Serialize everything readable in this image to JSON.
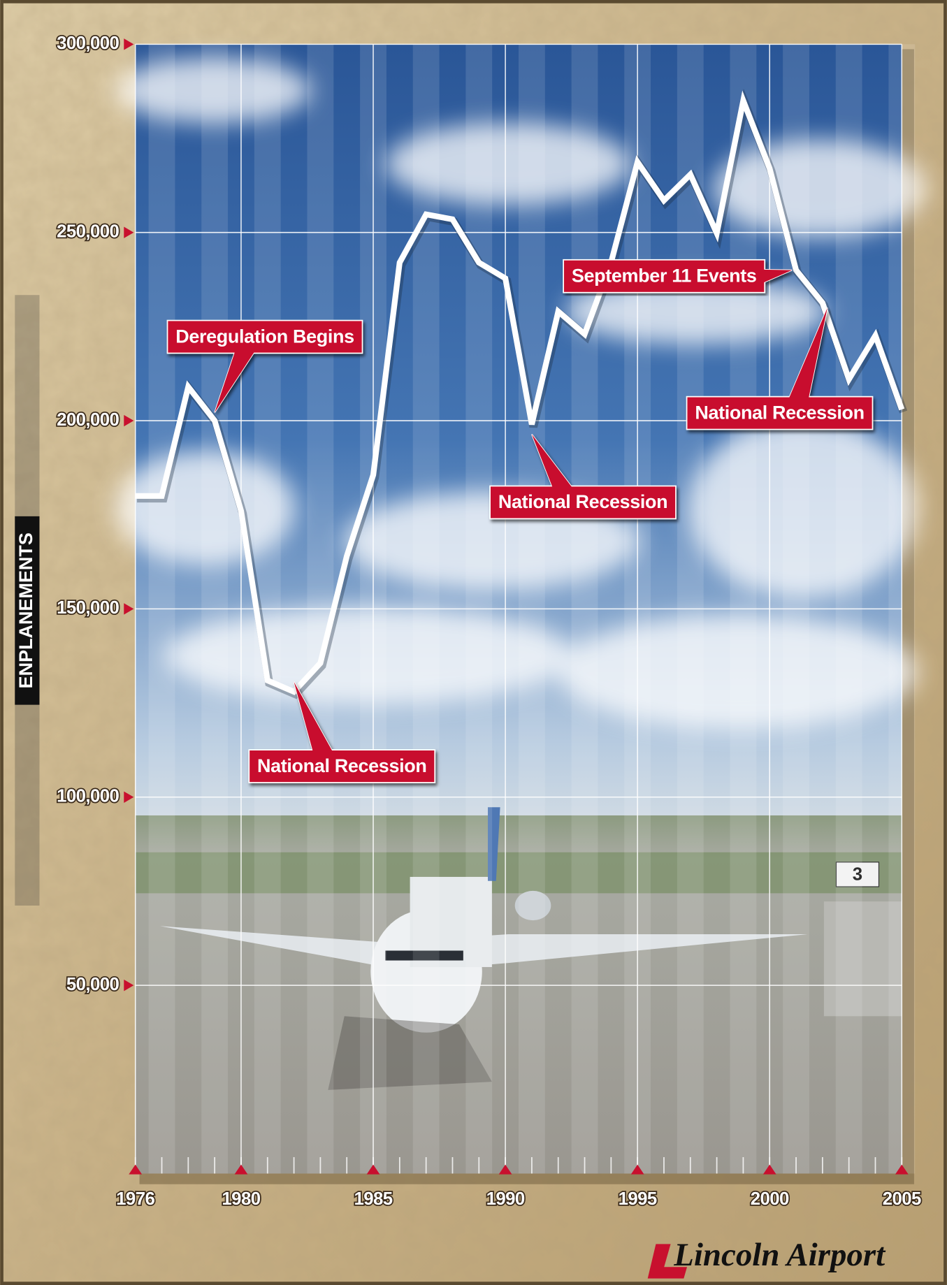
{
  "chart_data": {
    "type": "line",
    "y_axis_label": "ENPLANEMENTS",
    "x": [
      1976,
      1977,
      1978,
      1979,
      1980,
      1981,
      1982,
      1983,
      1984,
      1985,
      1986,
      1987,
      1988,
      1989,
      1990,
      1991,
      1992,
      1993,
      1994,
      1995,
      1996,
      1997,
      1998,
      1999,
      2000,
      2001,
      2002,
      2003,
      2004,
      2005
    ],
    "series": [
      {
        "color": "#ffffff",
        "values": [
          180000,
          180000,
          209000,
          200000,
          176000,
          131000,
          128000,
          135600,
          164000,
          185600,
          242000,
          254800,
          253500,
          242000,
          237800,
          199000,
          229000,
          223000,
          242000,
          268700,
          258500,
          265400,
          249800,
          285000,
          267000,
          240000,
          231300,
          211000,
          222600,
          203000
        ]
      }
    ],
    "xlim": [
      1976,
      2005
    ],
    "xticks": [
      1976,
      1980,
      1985,
      1990,
      1995,
      2000,
      2005
    ],
    "ylim": [
      0,
      300000
    ],
    "yticks": [
      {
        "value": 50000,
        "label": "50,000"
      },
      {
        "value": 100000,
        "label": "100,000"
      },
      {
        "value": 150000,
        "label": "150,000"
      },
      {
        "value": 200000,
        "label": "200,000"
      },
      {
        "value": 250000,
        "label": "250,000"
      },
      {
        "value": 300000,
        "label": "300,000"
      }
    ],
    "grid": true,
    "annotations": [
      {
        "text": "Deregulation Begins",
        "x": 1979
      },
      {
        "text": "National Recession",
        "x": 1982
      },
      {
        "text": "National Recession",
        "x": 1991
      },
      {
        "text": "September 11 Events",
        "x": 2001
      },
      {
        "text": "National Recession",
        "x": 2002
      }
    ],
    "logo": "Lincoln Airport"
  }
}
